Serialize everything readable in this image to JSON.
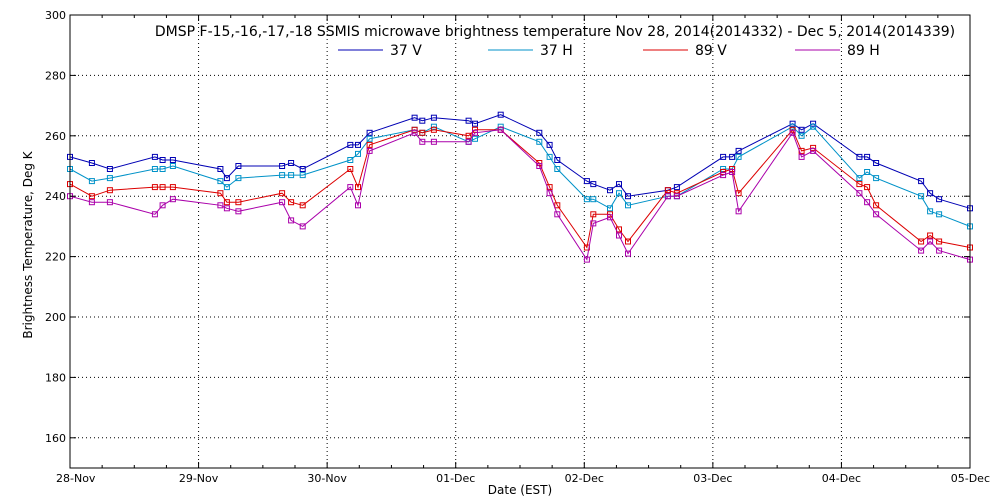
{
  "chart_data": {
    "type": "line",
    "title": "DMSP F-15,-16,-17,-18 SSMIS microwave brightness temperature Nov 28, 2014(2014332) - Dec  5, 2014(2014339)",
    "xlabel": "Date (EST)",
    "ylabel": "Brightness Temperature, Deg K",
    "xlim": [
      0,
      7
    ],
    "ylim": [
      150,
      300
    ],
    "yticks": [
      160,
      180,
      200,
      220,
      240,
      260,
      280,
      300
    ],
    "xtick_labels": [
      "28-Nov",
      "29-Nov",
      "30-Nov",
      "01-Dec",
      "02-Dec",
      "03-Dec",
      "04-Dec",
      "05-Dec"
    ],
    "grid": true,
    "legend_position": "top-center",
    "series": [
      {
        "name": "37 V",
        "color": "#0000b4",
        "x": [
          0,
          0.17,
          0.31,
          0.66,
          0.72,
          0.8,
          1.17,
          1.22,
          1.31,
          1.65,
          1.72,
          1.81,
          2.18,
          2.24,
          2.33,
          2.68,
          2.74,
          2.83,
          3.1,
          3.15,
          3.35,
          3.65,
          3.73,
          3.79,
          4.02,
          4.07,
          4.2,
          4.27,
          4.34,
          4.65,
          4.72,
          5.08,
          5.15,
          5.2,
          5.62,
          5.69,
          5.78,
          6.14,
          6.2,
          6.27,
          6.62,
          6.69,
          6.76,
          7.0
        ],
        "values": [
          253,
          251,
          249,
          253,
          252,
          252,
          249,
          246,
          250,
          250,
          251,
          249,
          257,
          257,
          261,
          266,
          265,
          266,
          265,
          264,
          267,
          261,
          257,
          252,
          245,
          244,
          242,
          244,
          240,
          242,
          243,
          253,
          253,
          255,
          264,
          262,
          264,
          253,
          253,
          251,
          245,
          241,
          239,
          236
        ]
      },
      {
        "name": "37 H",
        "color": "#0092c8",
        "x": [
          0,
          0.17,
          0.31,
          0.66,
          0.72,
          0.8,
          1.17,
          1.22,
          1.31,
          1.65,
          1.72,
          1.81,
          2.18,
          2.24,
          2.33,
          2.68,
          2.74,
          2.83,
          3.1,
          3.15,
          3.35,
          3.65,
          3.73,
          3.79,
          4.02,
          4.07,
          4.2,
          4.27,
          4.34,
          4.65,
          4.72,
          5.08,
          5.15,
          5.2,
          5.62,
          5.69,
          5.78,
          6.14,
          6.2,
          6.27,
          6.62,
          6.69,
          6.76,
          7.0
        ],
        "values": [
          249,
          245,
          246,
          249,
          249,
          250,
          245,
          243,
          246,
          247,
          247,
          247,
          252,
          254,
          259,
          262,
          261,
          263,
          258,
          259,
          263,
          258,
          253,
          249,
          239,
          239,
          236,
          241,
          237,
          240,
          240,
          249,
          249,
          253,
          263,
          260,
          263,
          246,
          248,
          246,
          240,
          235,
          234,
          230
        ]
      },
      {
        "name": "89 V",
        "color": "#dc0000",
        "x": [
          0,
          0.17,
          0.31,
          0.66,
          0.72,
          0.8,
          1.17,
          1.22,
          1.31,
          1.65,
          1.72,
          1.81,
          2.18,
          2.24,
          2.33,
          2.68,
          2.74,
          2.83,
          3.1,
          3.15,
          3.35,
          3.65,
          3.73,
          3.79,
          4.02,
          4.07,
          4.2,
          4.27,
          4.34,
          4.65,
          4.72,
          5.08,
          5.15,
          5.2,
          5.62,
          5.69,
          5.78,
          6.14,
          6.2,
          6.27,
          6.62,
          6.69,
          6.76,
          7.0
        ],
        "values": [
          244,
          240,
          242,
          243,
          243,
          243,
          241,
          238,
          238,
          241,
          238,
          237,
          249,
          243,
          257,
          262,
          261,
          262,
          260,
          262,
          262,
          251,
          243,
          237,
          223,
          234,
          234,
          229,
          225,
          242,
          241,
          248,
          249,
          241,
          262,
          255,
          256,
          244,
          243,
          237,
          225,
          227,
          225,
          223
        ]
      },
      {
        "name": "89 H",
        "color": "#aa00aa",
        "x": [
          0,
          0.17,
          0.31,
          0.66,
          0.72,
          0.8,
          1.17,
          1.22,
          1.31,
          1.65,
          1.72,
          1.81,
          2.18,
          2.24,
          2.33,
          2.68,
          2.74,
          2.83,
          3.1,
          3.15,
          3.35,
          3.65,
          3.73,
          3.79,
          4.02,
          4.07,
          4.2,
          4.27,
          4.34,
          4.65,
          4.72,
          5.08,
          5.15,
          5.2,
          5.62,
          5.69,
          5.78,
          6.14,
          6.2,
          6.27,
          6.62,
          6.69,
          6.76,
          7.0
        ],
        "values": [
          240,
          238,
          238,
          234,
          237,
          239,
          237,
          236,
          235,
          238,
          232,
          230,
          243,
          237,
          255,
          261,
          258,
          258,
          258,
          261,
          262,
          250,
          241,
          234,
          219,
          231,
          233,
          227,
          221,
          240,
          240,
          247,
          248,
          235,
          261,
          253,
          255,
          241,
          238,
          234,
          222,
          225,
          222,
          219
        ]
      }
    ]
  }
}
